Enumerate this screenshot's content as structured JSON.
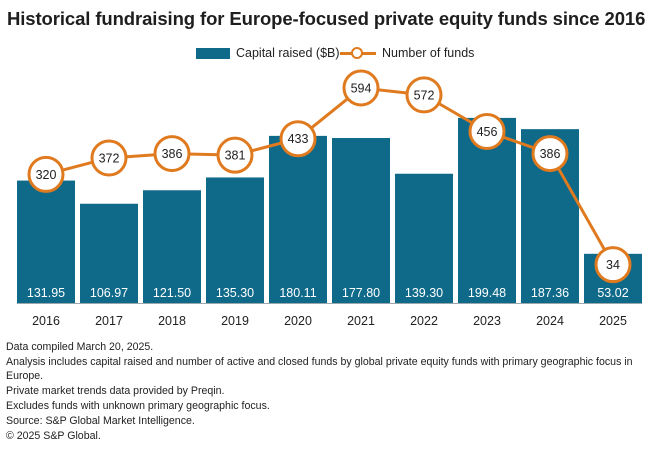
{
  "title": "Historical fundraising for Europe-focused private equity funds since 2016",
  "colors": {
    "bar": "#0f6a8a",
    "line": "#e07a1f",
    "bar_label": "#ffffff",
    "outside_label": "#1f7aa0"
  },
  "legend": {
    "bars": "Capital raised ($B)",
    "line": "Number of funds"
  },
  "chart_data": {
    "type": "bar+line",
    "categories": [
      "2016",
      "2017",
      "2018",
      "2019",
      "2020",
      "2021",
      "2022",
      "2023",
      "2024",
      "2025"
    ],
    "series": [
      {
        "name": "Capital raised ($B)",
        "type": "bar",
        "values": [
          131.95,
          106.97,
          121.5,
          135.3,
          180.11,
          177.8,
          139.3,
          199.48,
          187.36,
          53.02
        ],
        "labels": [
          "131.95",
          "106.97",
          "121.50",
          "135.30",
          "180.11",
          "177.80",
          "139.30",
          "199.48",
          "187.36",
          "53.02"
        ]
      },
      {
        "name": "Number of funds",
        "type": "line",
        "values": [
          320,
          372,
          386,
          381,
          433,
          594,
          572,
          456,
          386,
          34
        ]
      }
    ],
    "bar_axis_range": [
      0,
      215
    ],
    "line_axis_range": [
      0,
      650
    ],
    "legend_position": "top-center",
    "grid": false
  },
  "notes": [
    "Data compiled March 20, 2025.",
    "Analysis includes capital raised and number of active and closed funds by global private equity funds with primary geographic focus in Europe.",
    "Private market trends data provided by Preqin.",
    "Excludes funds with unknown primary geographic focus.",
    "Source: S&P Global Market Intelligence.",
    "© 2025 S&P Global."
  ]
}
